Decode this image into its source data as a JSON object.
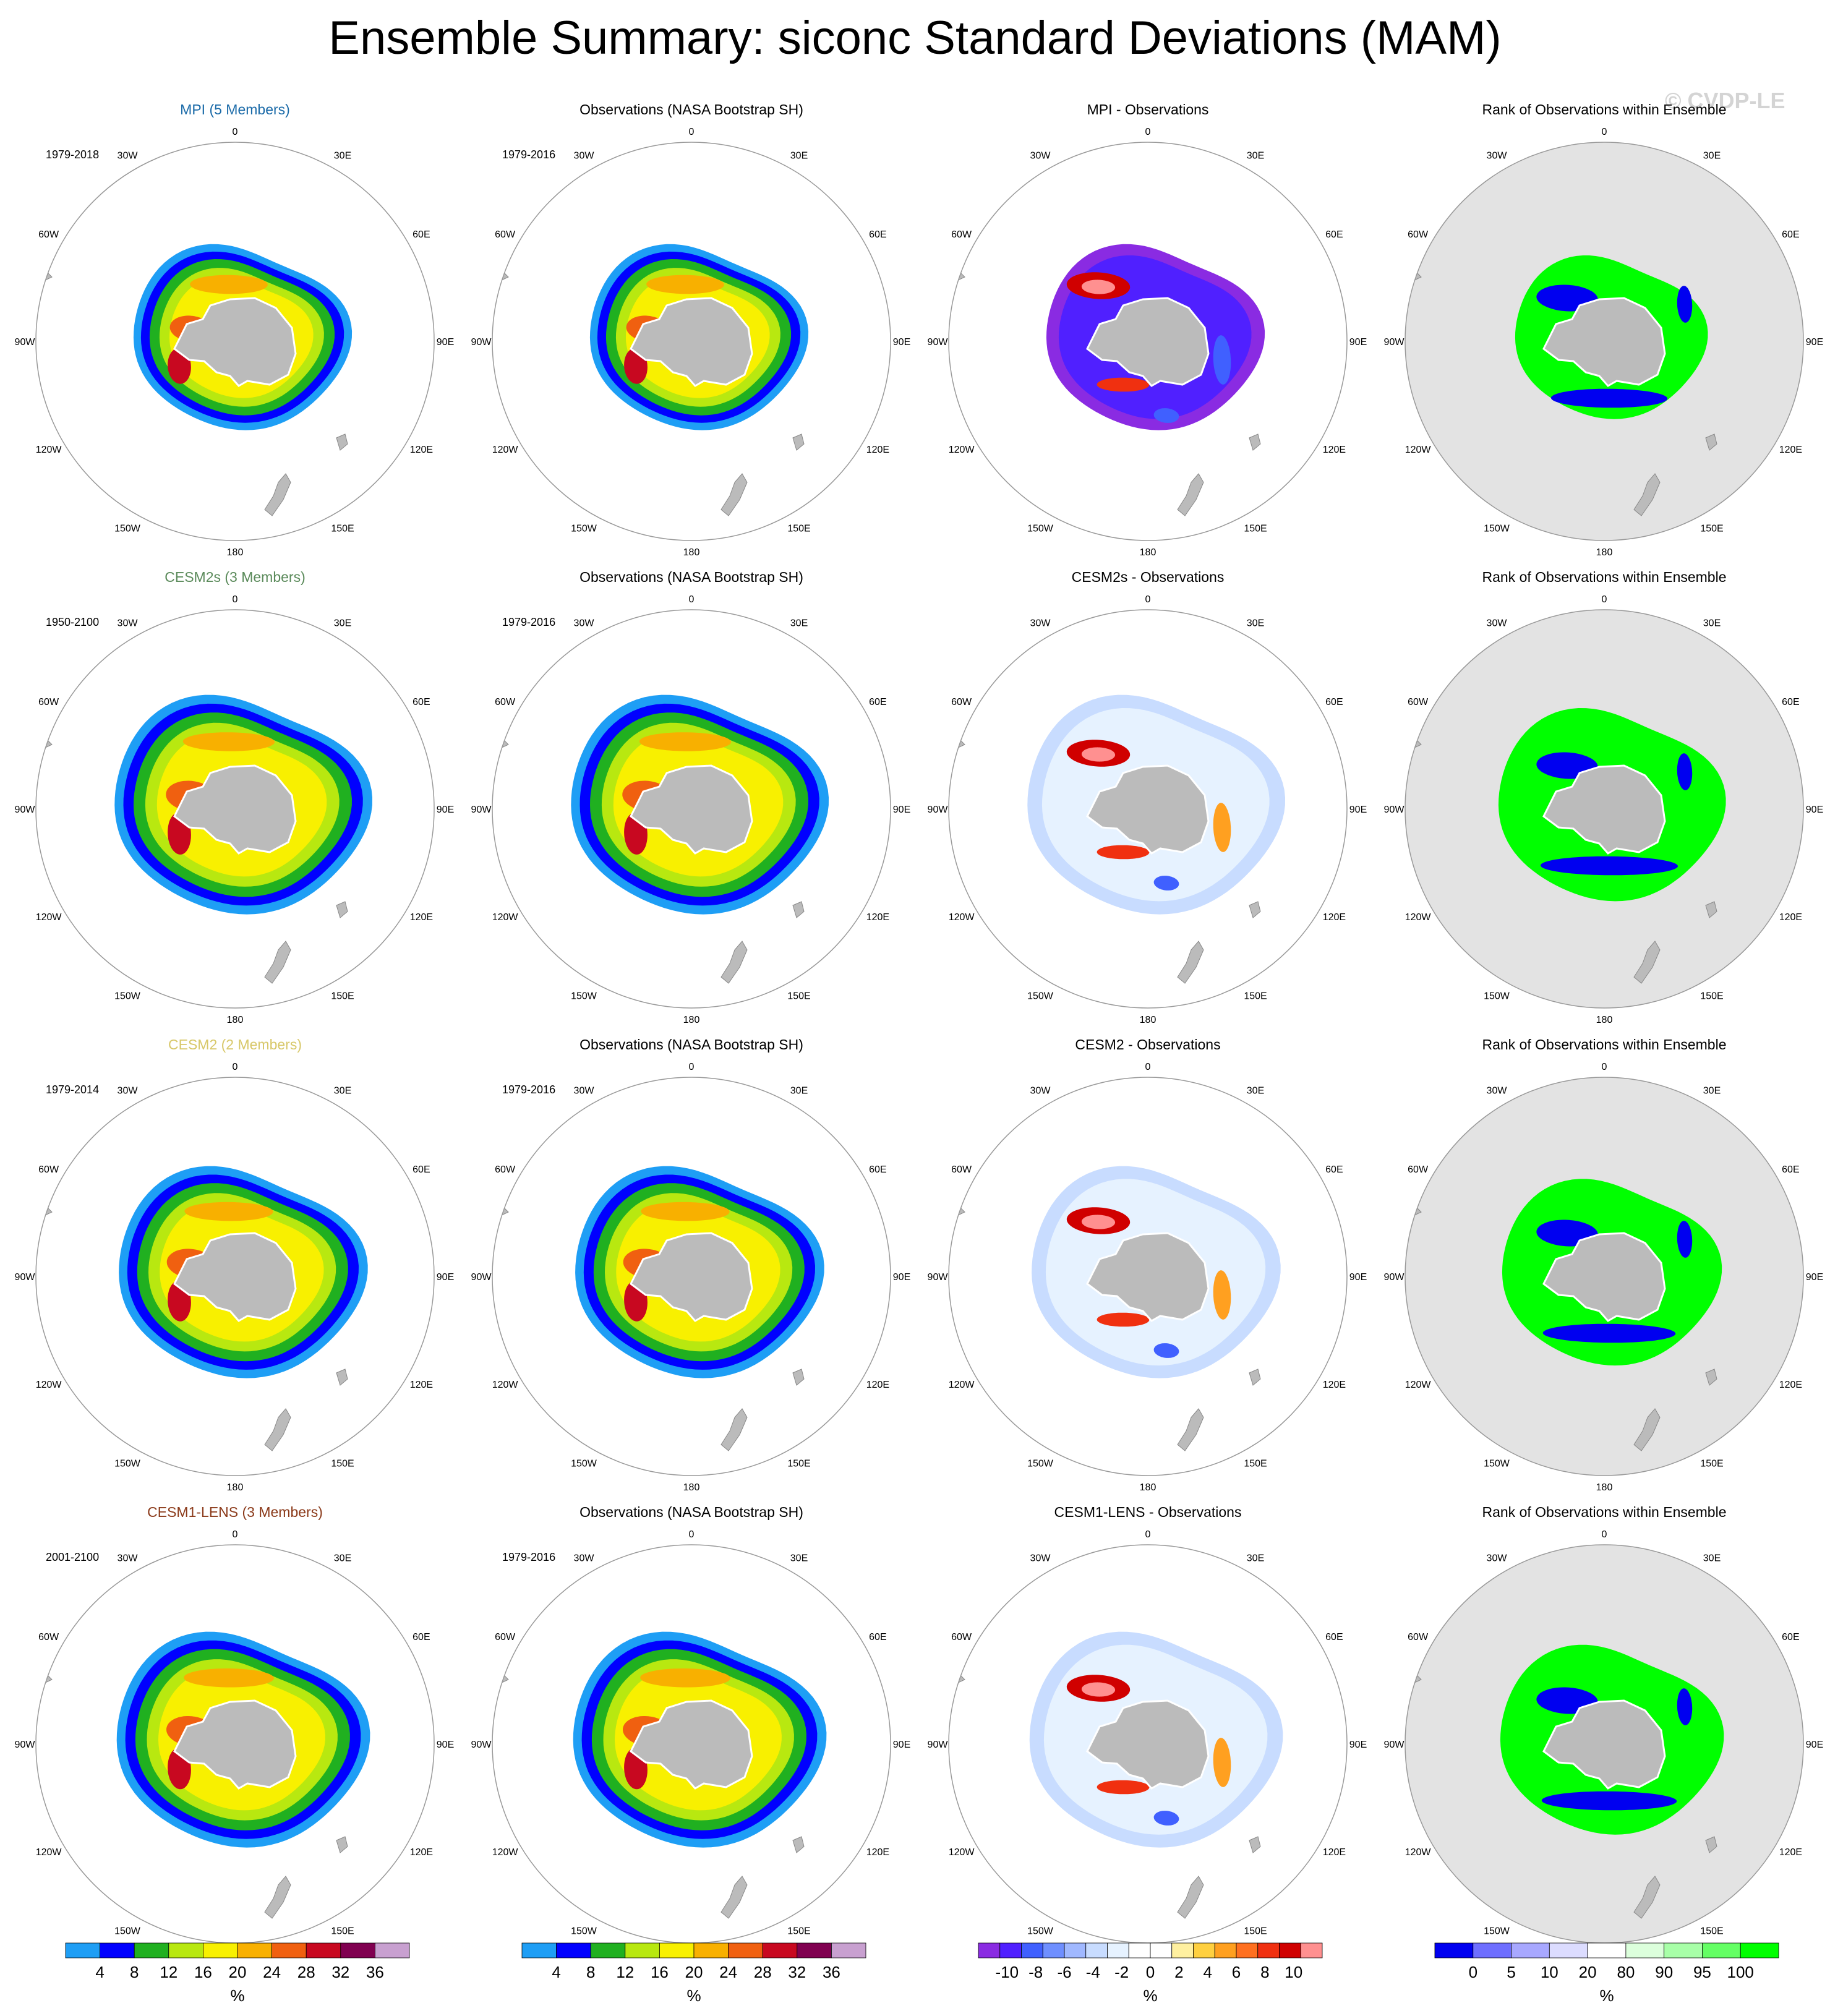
{
  "title": "Ensemble Summary: siconc Standard Deviations (MAM)",
  "watermark": "© CVDP-LE",
  "colors": {
    "land": "#bbbbbb",
    "rank_background": "#e3e3e3",
    "std_levels": [
      "#1e9ef5",
      "#0000ff",
      "#20b020",
      "#b8e810",
      "#f8f000",
      "#f8b000",
      "#f06010",
      "#c80820",
      "#800050",
      "#c8a0d0"
    ],
    "diff_levels": [
      "#8a2be2",
      "#5020ff",
      "#4060ff",
      "#6f8fff",
      "#a0b8ff",
      "#c8dcff",
      "#e6f2ff",
      "#ffffff",
      "#ffffff",
      "#fff0a0",
      "#ffd040",
      "#ffa020",
      "#ff7020",
      "#f03010",
      "#d00000",
      "#ff9090"
    ],
    "rank_levels": [
      "#0000f0",
      "#6e6eff",
      "#a8a8ff",
      "#dcdcff",
      "#ffffff",
      "#dcffdc",
      "#a8ffa8",
      "#64ff64",
      "#00ff00"
    ]
  },
  "lon_labels": [
    "0",
    "30E",
    "60E",
    "90E",
    "120E",
    "150E",
    "180",
    "150W",
    "120W",
    "90W",
    "60W",
    "30W"
  ],
  "chart_data": [
    {
      "type": "heatmap",
      "row": 1,
      "col": 1,
      "title": "MPI (5 Members)",
      "title_color": "#1a6aa8",
      "period": "1979-2018",
      "kind": "std"
    },
    {
      "type": "heatmap",
      "row": 1,
      "col": 2,
      "title": "Observations (NASA Bootstrap SH)",
      "title_color": "#000000",
      "period": "1979-2016",
      "kind": "std"
    },
    {
      "type": "heatmap",
      "row": 1,
      "col": 3,
      "title": "MPI - Observations",
      "title_color": "#000000",
      "period": "",
      "kind": "diff"
    },
    {
      "type": "heatmap",
      "row": 1,
      "col": 4,
      "title": "Rank of Observations within Ensemble",
      "title_color": "#000000",
      "period": "",
      "kind": "rank"
    },
    {
      "type": "heatmap",
      "row": 2,
      "col": 1,
      "title": "CESM2s (3 Members)",
      "title_color": "#5a8a5a",
      "period": "1950-2100",
      "kind": "std"
    },
    {
      "type": "heatmap",
      "row": 2,
      "col": 2,
      "title": "Observations (NASA Bootstrap SH)",
      "title_color": "#000000",
      "period": "1979-2016",
      "kind": "std"
    },
    {
      "type": "heatmap",
      "row": 2,
      "col": 3,
      "title": "CESM2s - Observations",
      "title_color": "#000000",
      "period": "",
      "kind": "diff"
    },
    {
      "type": "heatmap",
      "row": 2,
      "col": 4,
      "title": "Rank of Observations within Ensemble",
      "title_color": "#000000",
      "period": "",
      "kind": "rank"
    },
    {
      "type": "heatmap",
      "row": 3,
      "col": 1,
      "title": "CESM2 (2 Members)",
      "title_color": "#d8c86a",
      "period": "1979-2014",
      "kind": "std"
    },
    {
      "type": "heatmap",
      "row": 3,
      "col": 2,
      "title": "Observations (NASA Bootstrap SH)",
      "title_color": "#000000",
      "period": "1979-2016",
      "kind": "std"
    },
    {
      "type": "heatmap",
      "row": 3,
      "col": 3,
      "title": "CESM2 - Observations",
      "title_color": "#000000",
      "period": "",
      "kind": "diff"
    },
    {
      "type": "heatmap",
      "row": 3,
      "col": 4,
      "title": "Rank of Observations within Ensemble",
      "title_color": "#000000",
      "period": "",
      "kind": "rank"
    },
    {
      "type": "heatmap",
      "row": 4,
      "col": 1,
      "title": "CESM1-LENS (3 Members)",
      "title_color": "#8b3a1a",
      "period": "2001-2100",
      "kind": "std"
    },
    {
      "type": "heatmap",
      "row": 4,
      "col": 2,
      "title": "Observations (NASA Bootstrap SH)",
      "title_color": "#000000",
      "period": "1979-2016",
      "kind": "std"
    },
    {
      "type": "heatmap",
      "row": 4,
      "col": 3,
      "title": "CESM1-LENS - Observations",
      "title_color": "#000000",
      "period": "",
      "kind": "diff"
    },
    {
      "type": "heatmap",
      "row": 4,
      "col": 4,
      "title": "Rank of Observations within Ensemble",
      "title_color": "#000000",
      "period": "",
      "kind": "rank"
    }
  ],
  "colorbars": [
    {
      "col": 1,
      "kind": "std",
      "labels": [
        "4",
        "8",
        "12",
        "16",
        "20",
        "24",
        "28",
        "32",
        "36"
      ],
      "unit": "%"
    },
    {
      "col": 2,
      "kind": "std",
      "labels": [
        "4",
        "8",
        "12",
        "16",
        "20",
        "24",
        "28",
        "32",
        "36"
      ],
      "unit": "%"
    },
    {
      "col": 3,
      "kind": "diff",
      "labels": [
        "-10",
        "-8",
        "-6",
        "-4",
        "-2",
        "0",
        "2",
        "4",
        "6",
        "8",
        "10"
      ],
      "unit": "%"
    },
    {
      "col": 4,
      "kind": "rank",
      "labels": [
        "0",
        "5",
        "10",
        "20",
        "80",
        "90",
        "95",
        "100"
      ],
      "unit": "%"
    }
  ]
}
